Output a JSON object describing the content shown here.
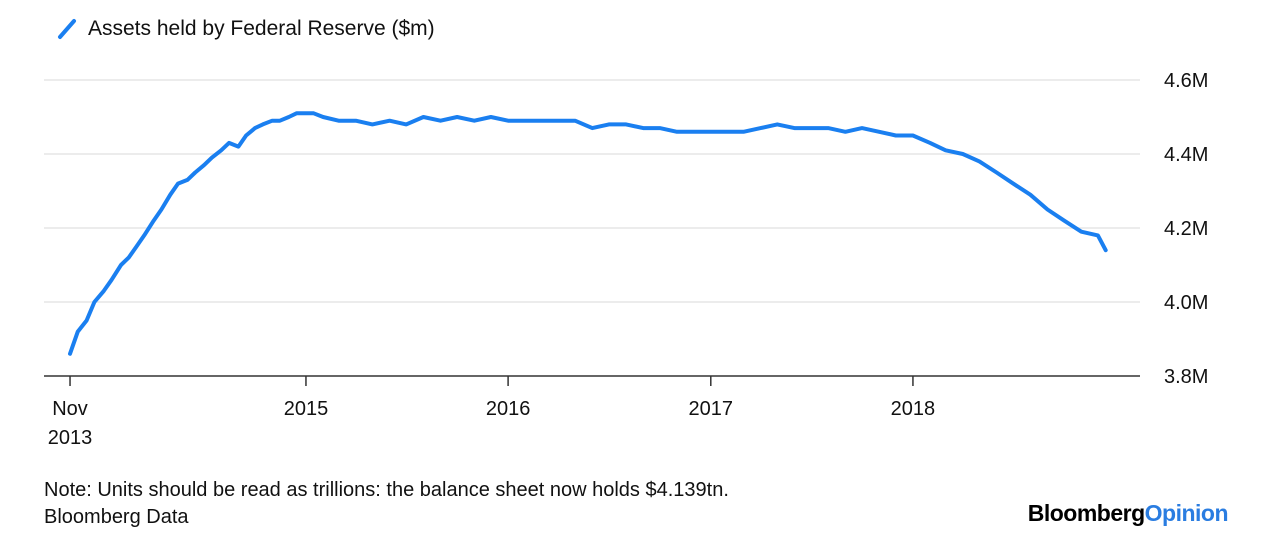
{
  "chart_data": {
    "type": "line",
    "series": [
      {
        "name": "Assets held by Federal Reserve ($m)",
        "color": "#1a7ff0",
        "points": [
          [
            "2013-11-01",
            3.86
          ],
          [
            "2013-11-15",
            3.92
          ],
          [
            "2013-12-01",
            3.95
          ],
          [
            "2013-12-15",
            4.0
          ],
          [
            "2014-01-01",
            4.03
          ],
          [
            "2014-01-15",
            4.06
          ],
          [
            "2014-02-01",
            4.1
          ],
          [
            "2014-02-15",
            4.12
          ],
          [
            "2014-03-01",
            4.15
          ],
          [
            "2014-03-15",
            4.18
          ],
          [
            "2014-04-01",
            4.22
          ],
          [
            "2014-04-15",
            4.25
          ],
          [
            "2014-05-01",
            4.29
          ],
          [
            "2014-05-15",
            4.32
          ],
          [
            "2014-06-01",
            4.33
          ],
          [
            "2014-06-15",
            4.35
          ],
          [
            "2014-07-01",
            4.37
          ],
          [
            "2014-07-15",
            4.39
          ],
          [
            "2014-08-01",
            4.41
          ],
          [
            "2014-08-15",
            4.43
          ],
          [
            "2014-09-01",
            4.42
          ],
          [
            "2014-09-15",
            4.45
          ],
          [
            "2014-10-01",
            4.47
          ],
          [
            "2014-10-15",
            4.48
          ],
          [
            "2014-11-01",
            4.49
          ],
          [
            "2014-11-15",
            4.49
          ],
          [
            "2014-12-01",
            4.5
          ],
          [
            "2014-12-15",
            4.51
          ],
          [
            "2015-01-01",
            4.51
          ],
          [
            "2015-01-15",
            4.51
          ],
          [
            "2015-02-01",
            4.5
          ],
          [
            "2015-03-01",
            4.49
          ],
          [
            "2015-04-01",
            4.49
          ],
          [
            "2015-05-01",
            4.48
          ],
          [
            "2015-06-01",
            4.49
          ],
          [
            "2015-07-01",
            4.48
          ],
          [
            "2015-08-01",
            4.5
          ],
          [
            "2015-09-01",
            4.49
          ],
          [
            "2015-10-01",
            4.5
          ],
          [
            "2015-11-01",
            4.49
          ],
          [
            "2015-12-01",
            4.5
          ],
          [
            "2016-01-01",
            4.49
          ],
          [
            "2016-02-01",
            4.49
          ],
          [
            "2016-03-01",
            4.49
          ],
          [
            "2016-04-01",
            4.49
          ],
          [
            "2016-05-01",
            4.49
          ],
          [
            "2016-06-01",
            4.47
          ],
          [
            "2016-07-01",
            4.48
          ],
          [
            "2016-08-01",
            4.48
          ],
          [
            "2016-09-01",
            4.47
          ],
          [
            "2016-10-01",
            4.47
          ],
          [
            "2016-11-01",
            4.46
          ],
          [
            "2016-12-01",
            4.46
          ],
          [
            "2017-01-01",
            4.46
          ],
          [
            "2017-02-01",
            4.46
          ],
          [
            "2017-03-01",
            4.46
          ],
          [
            "2017-04-01",
            4.47
          ],
          [
            "2017-05-01",
            4.48
          ],
          [
            "2017-06-01",
            4.47
          ],
          [
            "2017-07-01",
            4.47
          ],
          [
            "2017-08-01",
            4.47
          ],
          [
            "2017-09-01",
            4.46
          ],
          [
            "2017-10-01",
            4.47
          ],
          [
            "2017-11-01",
            4.46
          ],
          [
            "2017-12-01",
            4.45
          ],
          [
            "2018-01-01",
            4.45
          ],
          [
            "2018-02-01",
            4.43
          ],
          [
            "2018-03-01",
            4.41
          ],
          [
            "2018-04-01",
            4.4
          ],
          [
            "2018-05-01",
            4.38
          ],
          [
            "2018-06-01",
            4.35
          ],
          [
            "2018-07-01",
            4.32
          ],
          [
            "2018-08-01",
            4.29
          ],
          [
            "2018-09-01",
            4.25
          ],
          [
            "2018-10-01",
            4.22
          ],
          [
            "2018-11-01",
            4.19
          ],
          [
            "2018-12-01",
            4.18
          ],
          [
            "2018-12-15",
            4.14
          ]
        ]
      }
    ],
    "x_ticks": [
      {
        "date": "2013-11-01",
        "line1": "Nov",
        "line2": "2013"
      },
      {
        "date": "2015-01-01",
        "line1": "2015",
        "line2": ""
      },
      {
        "date": "2016-01-01",
        "line1": "2016",
        "line2": ""
      },
      {
        "date": "2017-01-01",
        "line1": "2017",
        "line2": ""
      },
      {
        "date": "2018-01-01",
        "line1": "2018",
        "line2": ""
      }
    ],
    "x_range": [
      "2013-09-15",
      "2019-02-15"
    ],
    "y_ticks": [
      {
        "value": 3.8,
        "label": "3.8M"
      },
      {
        "value": 4.0,
        "label": "4.0M"
      },
      {
        "value": 4.2,
        "label": "4.2M"
      },
      {
        "value": 4.4,
        "label": "4.4M"
      },
      {
        "value": 4.6,
        "label": "4.6M"
      }
    ],
    "ylim": [
      3.8,
      4.6
    ],
    "grid": true,
    "legend_position": "top-left",
    "title": "",
    "xlabel": "",
    "ylabel": "",
    "axis_color": "#333333",
    "grid_color": "#e6e6e6"
  },
  "footer": {
    "note": "Note: Units should be read as trillions: the balance sheet now holds $4.139tn.",
    "source": "Bloomberg Data",
    "brand_part1": "Bloomberg",
    "brand_part2": "Opinion"
  }
}
